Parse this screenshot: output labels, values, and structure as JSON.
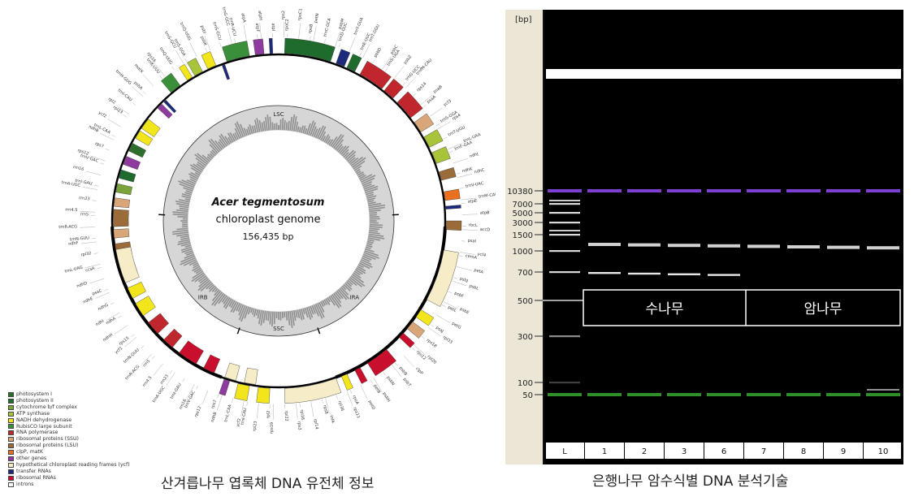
{
  "genome_map": {
    "species": "Acer tegmentosum",
    "type": "chloroplast genome",
    "size": "156,435 bp",
    "regions": [
      "LSC",
      "IRB",
      "SSC",
      "IRA"
    ],
    "gene_labels_outer": [
      "trnS-GGA",
      "trnQ-UUG",
      "psbK",
      "psbI",
      "trnS-GCU",
      "trnG-GCC",
      "trnR-UCU",
      "atpA",
      "atpF",
      "atpH",
      "atpI",
      "rps2",
      "rpoC2",
      "rpoC1",
      "rpoB",
      "petN",
      "trnC-GCA",
      "psbM",
      "trnD-GUC",
      "trnY-GUA",
      "trnE-UUC",
      "trnT-GGU",
      "psbD",
      "psbC",
      "trnS-UGA",
      "psbZ",
      "trnG-UCC",
      "trnfM-CAU",
      "rps14",
      "psaB",
      "psaA",
      "ycf3",
      "trnS-GGA",
      "rps4",
      "trnT-UGU",
      "trnL-UAA",
      "trnF-GAA",
      "ndhJ",
      "ndhK",
      "ndhC",
      "trnV-UAC",
      "trnM-CAU",
      "atpE",
      "atpB",
      "rbcL",
      "accD",
      "psaI",
      "ycf4",
      "cemA",
      "petA",
      "psbJ",
      "psbL",
      "psbF",
      "psbE",
      "petL",
      "petG",
      "psaJ",
      "rpl33",
      "rps18",
      "rpl20",
      "rps12",
      "clpP",
      "psbB",
      "psbT",
      "psbN",
      "psbH",
      "petB",
      "petD",
      "rpoA",
      "rps11",
      "rpl36",
      "infA",
      "rps8",
      "rpl14",
      "rpl16",
      "rps3",
      "rpl22",
      "rps19",
      "rpl2",
      "rpl23",
      "trnI-CAU",
      "ycf2",
      "trnL-CAA",
      "ndhB",
      "rps7",
      "rps12",
      "trnV-GAC",
      "rrn16",
      "trnI-GAU",
      "trnA-UGC",
      "rrn23",
      "rrn4.5",
      "rrn5",
      "trnR-ACG",
      "trnN-GUU",
      "ycf1",
      "rps15",
      "ndhH",
      "ndhA",
      "ndhI",
      "ndhG",
      "ndhE",
      "psaC",
      "ndhD",
      "ccsA",
      "trnL-UAG",
      "rpl32",
      "ndhF",
      "trnN-GUU",
      "trnR-ACG",
      "rrn5",
      "rrn4.5",
      "rrn23",
      "trnA-UGC",
      "trnI-GAU",
      "rrn16",
      "trnV-GAC",
      "rps12",
      "rps7",
      "ndhB",
      "trnL-CAA",
      "ycf2",
      "rpl23",
      "rpl2",
      "trnI-CAU",
      "trnH-GUG",
      "psbA",
      "matK",
      "trnK-UUU",
      "rps16",
      "trnQ-UUG",
      "trnS-GCU"
    ],
    "legend": [
      {
        "label": "photosystem I",
        "color": "#2d6e2a"
      },
      {
        "label": "photosystem II",
        "color": "#1f6b2e"
      },
      {
        "label": "cytochrome b/f complex",
        "color": "#7aa33a"
      },
      {
        "label": "ATP synthase",
        "color": "#a8c43a"
      },
      {
        "label": "NADH dehydrogenase",
        "color": "#f2e51c"
      },
      {
        "label": "RubisCO large subunit",
        "color": "#3c8f3a"
      },
      {
        "label": "RNA polymerase",
        "color": "#c0272d"
      },
      {
        "label": "ribosomal proteins (SSU)",
        "color": "#d9a679"
      },
      {
        "label": "ribosomal proteins (LSU)",
        "color": "#9c6b3a"
      },
      {
        "label": "clpP, matK",
        "color": "#e8701e"
      },
      {
        "label": "other genes",
        "color": "#8e3a9e"
      },
      {
        "label": "hypothetical chloroplast reading frames (ycf)",
        "color": "#f6ecc8"
      },
      {
        "label": "transfer RNAs",
        "color": "#1b2a7a"
      },
      {
        "label": "ribosomal RNAs",
        "color": "#c8102e"
      },
      {
        "label": "introns",
        "color": "#ffffff"
      }
    ],
    "caption": "산겨릅나무 엽록체 DNA 유전체 정보"
  },
  "gel": {
    "unit_label": "[bp]",
    "ladder": [
      "10380",
      "7000",
      "5000",
      "3000",
      "1500",
      "1000",
      "700",
      "500",
      "300",
      "100",
      "50"
    ],
    "lanes": [
      "L",
      "1",
      "2",
      "3",
      "6",
      "7",
      "8",
      "9",
      "10"
    ],
    "group_male": "수나무",
    "group_female": "암나무",
    "caption": "은행나무 암수식별 DNA 분석기술",
    "colors": {
      "upper_marker": "#7e3fd2",
      "lower_marker": "#2f8f2a",
      "background": "#000000",
      "scale_bg": "#ebe6d6"
    }
  }
}
